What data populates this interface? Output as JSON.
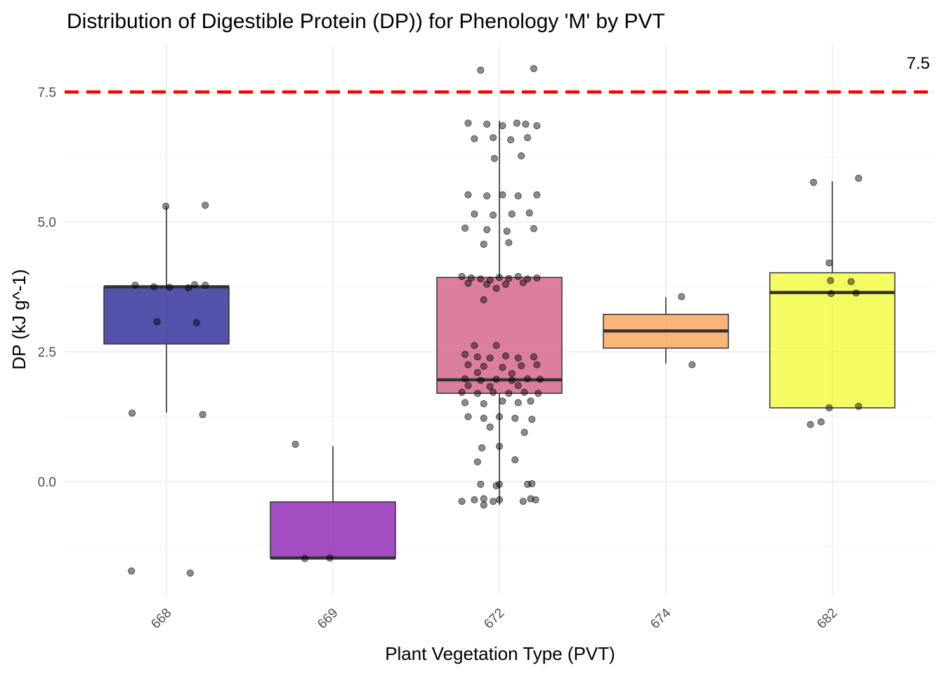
{
  "chart_data": {
    "type": "box",
    "title": "Distribution of Digestible Protein (DP)) for Phenology 'M' by PVT",
    "xlabel": "Plant Vegetation Type (PVT)",
    "ylabel": "DP (kJ g^-1)",
    "ylim": [
      -2.2,
      8.3
    ],
    "yticks": [
      "0.0",
      "2.5",
      "5.0",
      "7.5"
    ],
    "categories": [
      "668",
      "669",
      "672",
      "674",
      "682"
    ],
    "reference_line": {
      "value": 7.5,
      "label": "7.5",
      "color": "#ff0000",
      "style": "dashed"
    },
    "boxes": [
      {
        "category": "668",
        "fill": "#0d0887",
        "min": 1.33,
        "q1": 2.65,
        "median": 3.75,
        "q3": 3.75,
        "max": 5.3,
        "points": [
          [
            -0.55,
            1.32
          ],
          [
            0.58,
            1.29
          ],
          [
            -0.56,
            -1.72
          ],
          [
            0.38,
            -1.76
          ],
          [
            -0.01,
            5.3
          ],
          [
            0.62,
            5.32
          ],
          [
            -0.5,
            3.78
          ],
          [
            -0.2,
            3.75
          ],
          [
            0.05,
            3.74
          ],
          [
            0.35,
            3.73
          ],
          [
            0.45,
            3.79
          ],
          [
            0.62,
            3.78
          ],
          [
            -0.15,
            3.08
          ],
          [
            0.48,
            3.06
          ]
        ]
      },
      {
        "category": "669",
        "fill": "#7e03a8",
        "min": -1.47,
        "q1": -1.47,
        "median": -1.47,
        "q3": -0.39,
        "max": 0.68,
        "points": [
          [
            -0.6,
            0.72
          ],
          [
            -0.45,
            -1.48
          ],
          [
            -0.05,
            -1.47
          ]
        ]
      },
      {
        "category": "672",
        "fill": "#cc4778",
        "min": -0.45,
        "q1": 1.7,
        "median": 1.96,
        "q3": 3.93,
        "max": 6.95,
        "points": [
          [
            -0.3,
            7.92
          ],
          [
            0.55,
            7.95
          ],
          [
            -0.5,
            6.9
          ],
          [
            -0.2,
            6.88
          ],
          [
            0.05,
            6.85
          ],
          [
            0.28,
            6.9
          ],
          [
            0.42,
            6.88
          ],
          [
            0.6,
            6.85
          ],
          [
            -0.4,
            6.6
          ],
          [
            -0.1,
            6.62
          ],
          [
            0.18,
            6.58
          ],
          [
            0.45,
            6.62
          ],
          [
            -0.08,
            6.22
          ],
          [
            0.35,
            6.27
          ],
          [
            -0.5,
            5.52
          ],
          [
            -0.2,
            5.5
          ],
          [
            0.05,
            5.52
          ],
          [
            0.3,
            5.5
          ],
          [
            0.6,
            5.52
          ],
          [
            -0.4,
            5.15
          ],
          [
            -0.1,
            5.13
          ],
          [
            0.2,
            5.15
          ],
          [
            0.48,
            5.17
          ],
          [
            -0.55,
            4.88
          ],
          [
            -0.2,
            4.85
          ],
          [
            0.12,
            4.82
          ],
          [
            0.55,
            4.87
          ],
          [
            -0.25,
            4.57
          ],
          [
            0.15,
            4.6
          ],
          [
            -0.6,
            3.95
          ],
          [
            -0.45,
            3.92
          ],
          [
            -0.3,
            3.9
          ],
          [
            -0.15,
            3.88
          ],
          [
            0.0,
            3.93
          ],
          [
            0.15,
            3.91
          ],
          [
            0.3,
            3.95
          ],
          [
            0.45,
            3.9
          ],
          [
            0.6,
            3.92
          ],
          [
            -0.5,
            3.82
          ],
          [
            -0.2,
            3.8
          ],
          [
            0.1,
            3.8
          ],
          [
            0.38,
            3.83
          ],
          [
            -0.05,
            3.72
          ],
          [
            -0.25,
            3.5
          ],
          [
            -0.4,
            2.62
          ],
          [
            -0.05,
            2.62
          ],
          [
            -0.55,
            2.45
          ],
          [
            -0.35,
            2.4
          ],
          [
            -0.15,
            2.38
          ],
          [
            0.1,
            2.42
          ],
          [
            0.3,
            2.38
          ],
          [
            0.55,
            2.4
          ],
          [
            -0.5,
            2.25
          ],
          [
            -0.25,
            2.22
          ],
          [
            0.05,
            2.2
          ],
          [
            0.35,
            2.23
          ],
          [
            0.6,
            2.25
          ],
          [
            -0.35,
            2.1
          ],
          [
            0.2,
            2.08
          ],
          [
            -0.55,
            1.98
          ],
          [
            -0.3,
            1.95
          ],
          [
            -0.05,
            1.97
          ],
          [
            0.2,
            1.95
          ],
          [
            0.45,
            1.98
          ],
          [
            0.65,
            1.97
          ],
          [
            -0.5,
            1.85
          ],
          [
            -0.15,
            1.83
          ],
          [
            0.3,
            1.85
          ],
          [
            -0.6,
            1.72
          ],
          [
            -0.35,
            1.7
          ],
          [
            -0.1,
            1.72
          ],
          [
            0.15,
            1.7
          ],
          [
            0.4,
            1.72
          ],
          [
            0.62,
            1.7
          ],
          [
            -0.55,
            1.52
          ],
          [
            -0.25,
            1.5
          ],
          [
            0.05,
            1.55
          ],
          [
            0.3,
            1.52
          ],
          [
            0.5,
            1.55
          ],
          [
            -0.5,
            1.25
          ],
          [
            -0.25,
            1.22
          ],
          [
            0.0,
            1.25
          ],
          [
            0.25,
            1.22
          ],
          [
            0.52,
            1.2
          ],
          [
            -0.15,
            1.05
          ],
          [
            0.4,
            0.95
          ],
          [
            -0.28,
            0.65
          ],
          [
            0.0,
            0.68
          ],
          [
            -0.35,
            0.38
          ],
          [
            0.25,
            0.42
          ],
          [
            -0.3,
            -0.05
          ],
          [
            -0.05,
            -0.08
          ],
          [
            0.0,
            -0.05
          ],
          [
            0.45,
            -0.05
          ],
          [
            0.52,
            -0.04
          ],
          [
            -0.6,
            -0.38
          ],
          [
            -0.4,
            -0.35
          ],
          [
            -0.25,
            -0.33
          ],
          [
            -0.1,
            -0.38
          ],
          [
            0.0,
            -0.35
          ],
          [
            0.38,
            -0.38
          ],
          [
            0.5,
            -0.33
          ],
          [
            0.58,
            -0.35
          ],
          [
            -0.25,
            -0.45
          ]
        ]
      },
      {
        "category": "674",
        "fill": "#f89540",
        "min": 2.27,
        "q1": 2.57,
        "median": 2.9,
        "q3": 3.22,
        "max": 3.55,
        "points": [
          [
            0.25,
            3.56
          ],
          [
            0.42,
            2.25
          ]
        ]
      },
      {
        "category": "682",
        "fill": "#f0f921",
        "min": 1.42,
        "q1": 1.42,
        "median": 3.64,
        "q3": 4.02,
        "max": 5.78,
        "points": [
          [
            -0.3,
            5.76
          ],
          [
            0.42,
            5.84
          ],
          [
            -0.05,
            4.21
          ],
          [
            -0.03,
            3.87
          ],
          [
            0.3,
            3.85
          ],
          [
            -0.02,
            3.62
          ],
          [
            0.38,
            3.63
          ],
          [
            -0.05,
            1.42
          ],
          [
            0.42,
            1.45
          ],
          [
            -0.35,
            1.1
          ],
          [
            -0.18,
            1.15
          ]
        ]
      }
    ]
  }
}
